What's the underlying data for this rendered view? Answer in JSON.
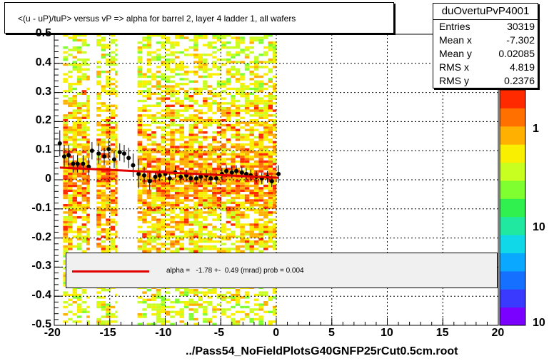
{
  "header": {
    "title": "<(u - uP)/tuP> versus   vP => alpha for barrel 2, layer 4 ladder 1, all wafers"
  },
  "stats": {
    "name": "duOvertuPvP4001",
    "rows": [
      {
        "label": "Entries",
        "value": "30319"
      },
      {
        "label": "Mean x",
        "value": "-7.302"
      },
      {
        "label": "Mean y",
        "value": "0.02085"
      },
      {
        "label": "RMS x",
        "value": "4.819"
      },
      {
        "label": "RMS y",
        "value": "0.2376"
      }
    ]
  },
  "fit": {
    "text": "alpha =   -1.78 +-  0.49 (mrad) prob = 0.004"
  },
  "footer": {
    "filename": "../Pass54_NoFieldPlotsG40GNFP25rCut0.5cm.root"
  },
  "colors": {
    "profile_points": "#000000",
    "fit_line": "#e00000",
    "fit_box_background": "#f0f0f0",
    "palette": [
      "#7a00ff",
      "#3a3aff",
      "#1570ff",
      "#0aa8ff",
      "#10d8e8",
      "#20e8a0",
      "#30f050",
      "#80ff30",
      "#c8ff20",
      "#f8f000",
      "#ffb000",
      "#ff7000",
      "#ff2a00"
    ]
  },
  "chart_data": {
    "type": "heatmap",
    "title": "<(u - uP)/tuP> versus   vP => alpha for barrel 2, layer 4 ladder 1, all wafers",
    "xlabel": "",
    "ylabel": "",
    "xlim": [
      -20,
      20
    ],
    "ylim": [
      -0.5,
      0.5
    ],
    "xticks": [
      "-20",
      "-15",
      "-10",
      "-5",
      "0",
      "5",
      "10",
      "15",
      "20"
    ],
    "yticks": [
      "-0.5",
      "-0.4",
      "-0.3",
      "-0.2",
      "-0.1",
      "0",
      "0.1",
      "0.2",
      "0.3",
      "0.4",
      "0.5"
    ],
    "grid": true,
    "zscale": "log",
    "zticks": [
      "10",
      "1",
      "10"
    ],
    "occupied_x_bands": [
      [
        -19.2,
        -16.8
      ],
      [
        -16.2,
        -14.3
      ],
      [
        -12.5,
        0.0
      ]
    ],
    "profile": {
      "x": [
        -19.5,
        -19.1,
        -18.7,
        -18.3,
        -17.9,
        -17.4,
        -16.9,
        -16.6,
        -16.0,
        -15.5,
        -15.1,
        -14.6,
        -14.1,
        -13.7,
        -13.3,
        -12.9,
        -12.4,
        -11.9,
        -11.4,
        -10.9,
        -10.5,
        -10.0,
        -9.6,
        -9.1,
        -8.6,
        -8.1,
        -7.7,
        -7.2,
        -6.8,
        -6.3,
        -5.9,
        -5.4,
        -4.9,
        -4.5,
        -4.0,
        -3.6,
        -3.1,
        -2.7,
        -2.3,
        -1.8,
        -1.3,
        -0.8,
        -0.4,
        0.2
      ],
      "y": [
        0.125,
        0.08,
        0.085,
        0.055,
        0.055,
        0.055,
        0.045,
        0.1,
        0.09,
        0.08,
        0.105,
        0.07,
        0.095,
        0.09,
        0.075,
        0.05,
        0.02,
        0.015,
        -0.005,
        0.01,
        0.015,
        0.02,
        0.005,
        0.025,
        0.01,
        0.015,
        0.005,
        0.005,
        0.01,
        0.015,
        0.005,
        0.005,
        0.02,
        0.03,
        0.025,
        0.03,
        0.025,
        0.02,
        0.015,
        0.01,
        0.005,
        0.01,
        -0.005,
        0.02
      ],
      "yerr": [
        0.045,
        0.04,
        0.035,
        0.03,
        0.03,
        0.03,
        0.03,
        0.03,
        0.035,
        0.03,
        0.035,
        0.03,
        0.03,
        0.03,
        0.035,
        0.04,
        0.05,
        0.03,
        0.03,
        0.02,
        0.02,
        0.02,
        0.02,
        0.02,
        0.02,
        0.02,
        0.02,
        0.02,
        0.02,
        0.02,
        0.02,
        0.02,
        0.02,
        0.02,
        0.02,
        0.02,
        0.02,
        0.02,
        0.02,
        0.02,
        0.02,
        0.02,
        0.02,
        0.03
      ]
    },
    "fit_line": {
      "x": [
        -19.5,
        0.2
      ],
      "y": [
        0.042,
        0.007
      ]
    },
    "legend": "alpha =   -1.78 +-  0.49 (mrad) prob = 0.004"
  }
}
